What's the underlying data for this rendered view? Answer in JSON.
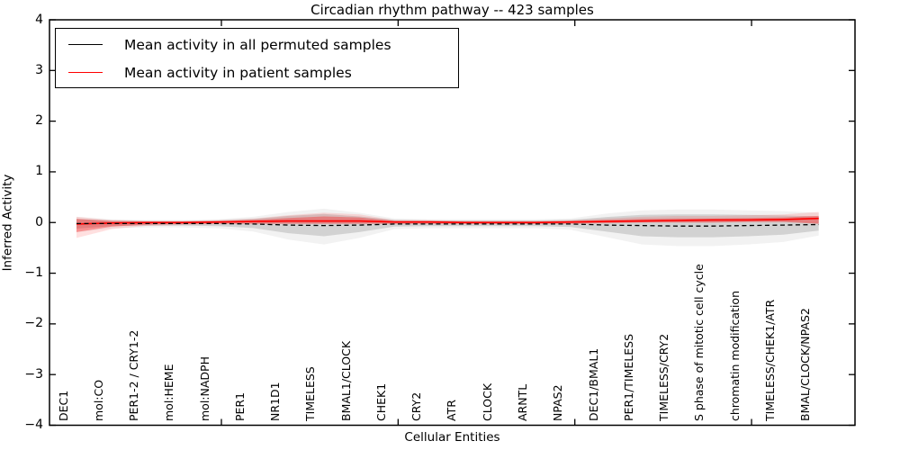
{
  "chart_data": {
    "type": "line",
    "title": "Circadian rhythm pathway -- 423 samples",
    "xlabel": "Cellular Entities",
    "ylabel": "Inferred Activity",
    "ylim": [
      -4,
      4
    ],
    "yticks": [
      4,
      3,
      2,
      1,
      0,
      -1,
      -2,
      -3,
      -4
    ],
    "ytick_labels": [
      "4",
      "3",
      "2",
      "1",
      "0",
      "−1",
      "−2",
      "−3",
      "−4"
    ],
    "grid": false,
    "legend_position": "upper left",
    "categories": [
      "DEC1",
      "mol:CO",
      "PER1-2 / CRY1-2",
      "mol:HEME",
      "mol:NADPH",
      "PER1",
      "NR1D1",
      "TIMELESS",
      "BMAL1/CLOCK",
      "CHEK1",
      "CRY2",
      "ATR",
      "CLOCK",
      "ARNTL",
      "NPAS2",
      "DEC1/BMAL1",
      "PER1/TIMELESS",
      "TIMELESS/CRY2",
      "S phase of mitotic cell cycle",
      "chromatin modification",
      "TIMELESS/CHEK1/ATR",
      "BMAL/CLOCK/NPAS2"
    ],
    "x_axis_sparse_tick_positions": [
      4.1,
      9.1,
      14.1,
      19.1
    ],
    "series": [
      {
        "name": "Mean activity in all permuted samples",
        "color": "#000000",
        "style": "dashed",
        "values": [
          -0.02,
          -0.02,
          -0.02,
          -0.02,
          -0.02,
          -0.03,
          -0.05,
          -0.06,
          -0.05,
          -0.03,
          -0.03,
          -0.03,
          -0.03,
          -0.03,
          -0.03,
          -0.05,
          -0.06,
          -0.07,
          -0.07,
          -0.06,
          -0.05,
          -0.04
        ]
      },
      {
        "name": "Mean activity in patient samples",
        "color": "#ff0000",
        "style": "solid",
        "values": [
          -0.03,
          -0.01,
          0,
          0,
          0.01,
          0.02,
          0.03,
          0.03,
          0.03,
          0.01,
          0.01,
          0,
          0,
          0,
          0.01,
          0.02,
          0.03,
          0.04,
          0.05,
          0.05,
          0.06,
          0.08
        ]
      }
    ],
    "bands": [
      {
        "name": "permuted-samples-range",
        "color": "#808080",
        "opacity": 0.28,
        "upper": [
          0.07,
          0.04,
          0.03,
          0.03,
          0.04,
          0.07,
          0.13,
          0.17,
          0.12,
          0.05,
          0.04,
          0.04,
          0.04,
          0.04,
          0.05,
          0.11,
          0.15,
          0.16,
          0.16,
          0.15,
          0.14,
          0.12
        ],
        "lower": [
          -0.12,
          -0.07,
          -0.06,
          -0.06,
          -0.07,
          -0.11,
          -0.21,
          -0.27,
          -0.19,
          -0.08,
          -0.07,
          -0.07,
          -0.07,
          -0.07,
          -0.09,
          -0.18,
          -0.27,
          -0.29,
          -0.29,
          -0.27,
          -0.24,
          -0.16
        ]
      },
      {
        "name": "patient-samples-range",
        "color": "#ff0000",
        "opacity": 0.32,
        "upper": [
          0.07,
          0.03,
          0.02,
          0.02,
          0.03,
          0.05,
          0.09,
          0.12,
          0.1,
          0.03,
          0.03,
          0.02,
          0.02,
          0.02,
          0.03,
          0.05,
          0.07,
          0.08,
          0.08,
          0.09,
          0.1,
          0.13
        ],
        "lower": [
          -0.19,
          -0.08,
          -0.04,
          -0.03,
          -0.02,
          -0.02,
          -0.02,
          -0.02,
          -0.02,
          -0.02,
          -0.02,
          -0.02,
          -0.02,
          -0.02,
          -0.02,
          -0.01,
          0,
          0,
          0,
          0.01,
          0.01,
          -0.02
        ]
      }
    ],
    "legend": {
      "entries": [
        {
          "label": "Mean activity in all permuted samples",
          "color": "#000000"
        },
        {
          "label": "Mean activity in patient samples",
          "color": "#ff0000"
        }
      ]
    }
  }
}
